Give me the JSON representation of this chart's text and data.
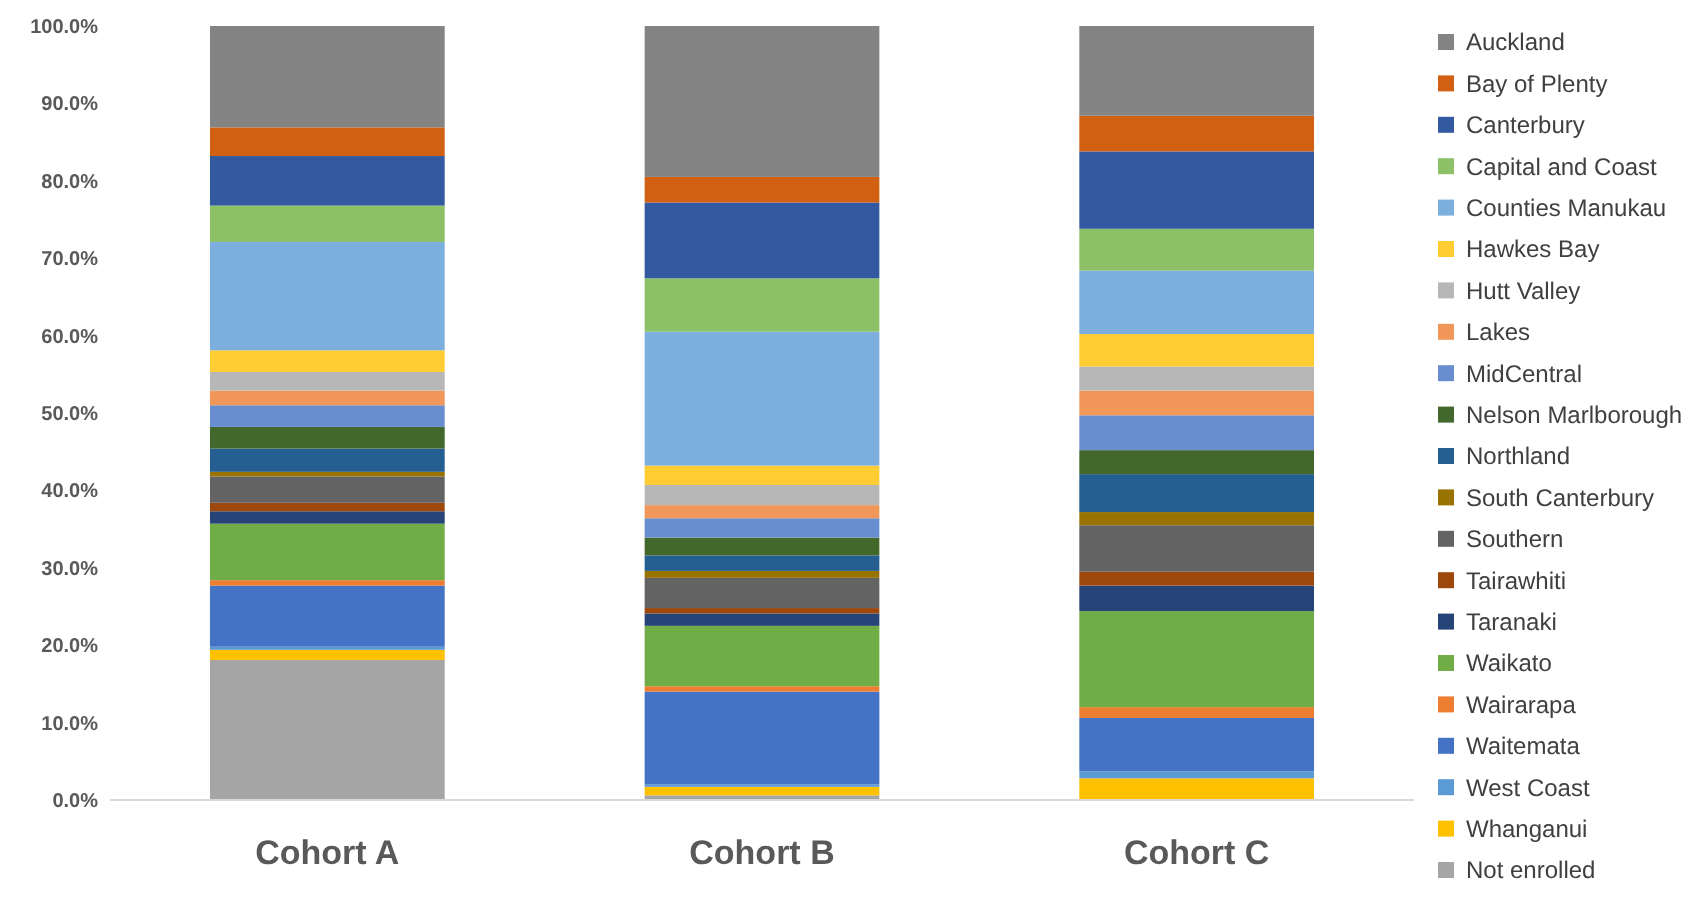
{
  "chart_data": {
    "type": "bar",
    "stacked": true,
    "categories": [
      "Cohort A",
      "Cohort B",
      "Cohort C"
    ],
    "ylim": [
      0,
      100
    ],
    "yticks": [
      {
        "value": 0,
        "label": "0.0%"
      },
      {
        "value": 10,
        "label": "10.0%"
      },
      {
        "value": 20,
        "label": "20.0%"
      },
      {
        "value": 30,
        "label": "30.0%"
      },
      {
        "value": 40,
        "label": "40.0%"
      },
      {
        "value": 50,
        "label": "50.0%"
      },
      {
        "value": 60,
        "label": "60.0%"
      },
      {
        "value": 70,
        "label": "70.0%"
      },
      {
        "value": 80,
        "label": "80.0%"
      },
      {
        "value": 90,
        "label": "90.0%"
      },
      {
        "value": 100,
        "label": "100.0%"
      }
    ],
    "grid": false,
    "legend": "right",
    "series": [
      {
        "name": "Not enrolled",
        "color": "#a5a5a5",
        "values": [
          18.1,
          0.6,
          null
        ]
      },
      {
        "name": "Whanganui",
        "color": "#ffc000",
        "values": [
          1.3,
          1.1,
          2.8
        ]
      },
      {
        "name": "West Coast",
        "color": "#5b9bd5",
        "values": [
          0.4,
          0.3,
          0.9
        ]
      },
      {
        "name": "Waitemata",
        "color": "#4472c4",
        "values": [
          7.9,
          12.0,
          6.9
        ]
      },
      {
        "name": "Wairarapa",
        "color": "#ed7d31",
        "values": [
          0.7,
          0.7,
          1.4
        ]
      },
      {
        "name": "Waikato",
        "color": "#70ad47",
        "values": [
          7.3,
          7.8,
          12.4
        ]
      },
      {
        "name": "Taranaki",
        "color": "#264478",
        "values": [
          1.6,
          1.6,
          3.3
        ]
      },
      {
        "name": "Tairawhiti",
        "color": "#9e480e",
        "values": [
          1.1,
          0.7,
          1.8
        ]
      },
      {
        "name": "Southern",
        "color": "#636363",
        "values": [
          3.4,
          3.9,
          6.0
        ]
      },
      {
        "name": "South Canterbury",
        "color": "#997300",
        "values": [
          0.6,
          0.9,
          1.7
        ]
      },
      {
        "name": "Northland",
        "color": "#255e91",
        "values": [
          3.0,
          2.0,
          4.9
        ]
      },
      {
        "name": "Nelson Marlborough",
        "color": "#43682b",
        "values": [
          2.8,
          2.3,
          3.1
        ]
      },
      {
        "name": "MidCentral",
        "color": "#698ed0",
        "values": [
          2.8,
          2.5,
          4.5
        ]
      },
      {
        "name": "Lakes",
        "color": "#f1975a",
        "values": [
          1.9,
          1.7,
          3.2
        ]
      },
      {
        "name": "Hutt Valley",
        "color": "#b7b7b7",
        "values": [
          2.4,
          2.6,
          3.1
        ]
      },
      {
        "name": "Hawkes Bay",
        "color": "#ffcd33",
        "values": [
          2.8,
          2.5,
          4.2
        ]
      },
      {
        "name": "Counties Manukau",
        "color": "#7cafdd",
        "values": [
          14.0,
          17.3,
          8.2
        ]
      },
      {
        "name": "Capital and Coast",
        "color": "#8cc168",
        "values": [
          4.7,
          6.9,
          5.4
        ]
      },
      {
        "name": "Canterbury",
        "color": "#335aa1",
        "values": [
          6.4,
          9.8,
          10.0
        ]
      },
      {
        "name": "Bay of Plenty",
        "color": "#d26012",
        "values": [
          3.7,
          3.3,
          4.6
        ]
      },
      {
        "name": "Auckland",
        "color": "#848484",
        "values": [
          13.1,
          19.5,
          11.6
        ]
      }
    ]
  }
}
